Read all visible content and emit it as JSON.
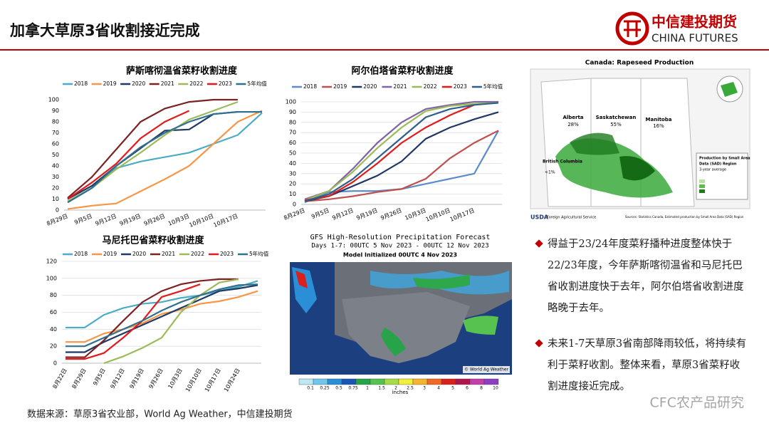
{
  "header": {
    "title": "加拿大草原3省收割接近完成",
    "logo_cn": "中信建投期货",
    "logo_en": "CHINA FUTURES"
  },
  "chart_data": [
    {
      "type": "line",
      "title": "萨斯喀彻温省菜籽收割进度",
      "categories": [
        "8月29日",
        "9月5日",
        "9月12日",
        "9月19日",
        "9月26日",
        "10月3日",
        "10月10日",
        "10月17日",
        null
      ],
      "ylim": [
        0,
        100
      ],
      "yticks": [
        0,
        10,
        20,
        30,
        40,
        50,
        60,
        70,
        80,
        90,
        100
      ],
      "grid": false,
      "series": [
        {
          "name": "2018",
          "color": "#4bacc6",
          "values": [
            7,
            20,
            38,
            44,
            48,
            52,
            60,
            68,
            88
          ]
        },
        {
          "name": "2019",
          "color": "#f79646",
          "values": [
            1,
            4,
            6,
            17,
            28,
            40,
            60,
            80,
            90
          ]
        },
        {
          "name": "2020",
          "color": "#1f3864",
          "values": [
            10,
            22,
            40,
            56,
            72,
            73,
            87,
            89,
            89
          ]
        },
        {
          "name": "2021",
          "color": "#7b2323",
          "values": [
            11,
            30,
            55,
            80,
            92,
            98,
            100,
            100,
            null
          ]
        },
        {
          "name": "2022",
          "color": "#9bbb59",
          "values": [
            8,
            20,
            37,
            52,
            68,
            82,
            90,
            98,
            null
          ]
        },
        {
          "name": "2023",
          "color": "#e31a1c",
          "values": [
            10,
            25,
            42,
            65,
            80,
            90,
            null,
            null,
            null
          ]
        },
        {
          "name": "5年均值",
          "color": "#31708f",
          "values": [
            7,
            20,
            40,
            57,
            70,
            80,
            87,
            89,
            89
          ]
        }
      ]
    },
    {
      "type": "line",
      "title": "阿尔伯塔省菜籽收割进度",
      "categories": [
        "8月29日",
        "9月5日",
        "9月12日",
        "9月19日",
        "9月26日",
        "10月3日",
        "10月10日",
        "10月17日",
        null
      ],
      "ylim": [
        0,
        100
      ],
      "yticks": [
        0,
        10,
        20,
        30,
        40,
        50,
        60,
        70,
        80,
        90,
        100
      ],
      "grid": true,
      "series": [
        {
          "name": "2018",
          "color": "#5b8cc9",
          "values": [
            2,
            12,
            13,
            13,
            15,
            20,
            25,
            30,
            72
          ]
        },
        {
          "name": "2019",
          "color": "#c0504d",
          "values": [
            3,
            5,
            8,
            12,
            15,
            25,
            45,
            60,
            72
          ]
        },
        {
          "name": "2020",
          "color": "#1f3864",
          "values": [
            3,
            8,
            18,
            28,
            42,
            64,
            75,
            83,
            90
          ]
        },
        {
          "name": "2021",
          "color": "#8064a2",
          "values": [
            5,
            13,
            35,
            60,
            80,
            93,
            97,
            100,
            100
          ]
        },
        {
          "name": "2022",
          "color": "#9bbb59",
          "values": [
            4,
            13,
            32,
            55,
            75,
            91,
            96,
            98,
            99
          ]
        },
        {
          "name": "2023",
          "color": "#e31a1c",
          "values": [
            4,
            8,
            22,
            40,
            60,
            75,
            87,
            97,
            null
          ]
        },
        {
          "name": "5年均值",
          "color": "#2e5f8a",
          "values": [
            3,
            10,
            25,
            45,
            65,
            85,
            93,
            97,
            99
          ]
        }
      ]
    },
    {
      "type": "line",
      "title": "马尼托巴省菜籽收割进度",
      "categories": [
        "8月22日",
        "8月29日",
        "9月5日",
        "9月12日",
        "9月19日",
        "9月26日",
        "10月3日",
        "10月10日",
        "10月17日",
        "10月24日",
        null
      ],
      "ylim": [
        0,
        120
      ],
      "yticks": [
        0,
        20,
        40,
        60,
        80,
        100,
        120
      ],
      "grid": true,
      "series": [
        {
          "name": "2018",
          "color": "#4bacc6",
          "values": [
            42,
            42,
            57,
            65,
            70,
            72,
            77,
            80,
            85,
            90,
            97
          ]
        },
        {
          "name": "2019",
          "color": "#f79646",
          "values": [
            25,
            25,
            35,
            40,
            47,
            58,
            63,
            70,
            73,
            78,
            85
          ]
        },
        {
          "name": "2020",
          "color": "#1f3864",
          "values": [
            13,
            13,
            25,
            35,
            45,
            55,
            65,
            75,
            85,
            88,
            92
          ]
        },
        {
          "name": "2021",
          "color": "#7b2323",
          "values": [
            7,
            7,
            27,
            50,
            72,
            85,
            93,
            97,
            99,
            99,
            null
          ]
        },
        {
          "name": "2022",
          "color": "#9bbb59",
          "values": [
            null,
            null,
            0,
            8,
            18,
            30,
            60,
            80,
            95,
            99,
            null
          ]
        },
        {
          "name": "2023",
          "color": "#e31a1c",
          "values": [
            5,
            5,
            12,
            30,
            50,
            78,
            85,
            93,
            null,
            null,
            null
          ]
        },
        {
          "name": "5年均值",
          "color": "#31708f",
          "values": [
            20,
            20,
            30,
            40,
            50,
            62,
            72,
            80,
            87,
            92,
            93
          ]
        }
      ]
    }
  ],
  "rapeseed_map": {
    "title": "Canada: Rapeseed Production",
    "provinces": [
      "Alberta",
      "28%",
      "Saskatchewan",
      "55%",
      "Manitoba",
      "16%",
      "British Columbia",
      "<1%"
    ],
    "legend": [
      "Production by Small Area",
      "Data (SAD) Region",
      "3-year average"
    ],
    "footer_left": "Foreign Agricultural Service",
    "footer_right": "Sources: Statistics Canada, Estimated production by Small Area Data (SAD) Region"
  },
  "precip_map": {
    "title": "GFS High-Resolution Precipitation Forecast",
    "subtitle": "Days 1-7: 00UTC 5 Nov 2023 - 00UTC 12 Nov 2023",
    "init": "Model Initialized 00UTC 4 Nov 2023",
    "credit": "© World Ag Weather",
    "scale_labels": [
      "0.1",
      "0.25",
      "0.5",
      "0.75",
      "1",
      "1.5",
      "2",
      "2.5",
      "3",
      "4",
      "5",
      "6",
      "8",
      "10"
    ],
    "scale_colors": [
      "#bfe8f5",
      "#6fc7ec",
      "#2a8fd6",
      "#1a55b8",
      "#27a34a",
      "#57c24f",
      "#a5dd4a",
      "#f2ee3c",
      "#f5b52e",
      "#ef6a24",
      "#d9201c",
      "#b0154e",
      "#c23ea8",
      "#8c3fc0"
    ],
    "unit": "inches"
  },
  "bullets": [
    "得益于23/24年度菜籽播种进度整体快于22/23年度，今年萨斯喀彻温省和马尼托巴省收割进度快于去年，阿尔伯塔省收割进度略晚于去年。",
    "未来1-7天草原3省南部降雨较低，将持续有利于菜籽收割。整体来看，草原3省菜籽收割进度接近完成。"
  ],
  "source": "数据来源：草原3省农业部，World Ag Weather，中信建投期货",
  "watermark": "CFC农产品研究"
}
